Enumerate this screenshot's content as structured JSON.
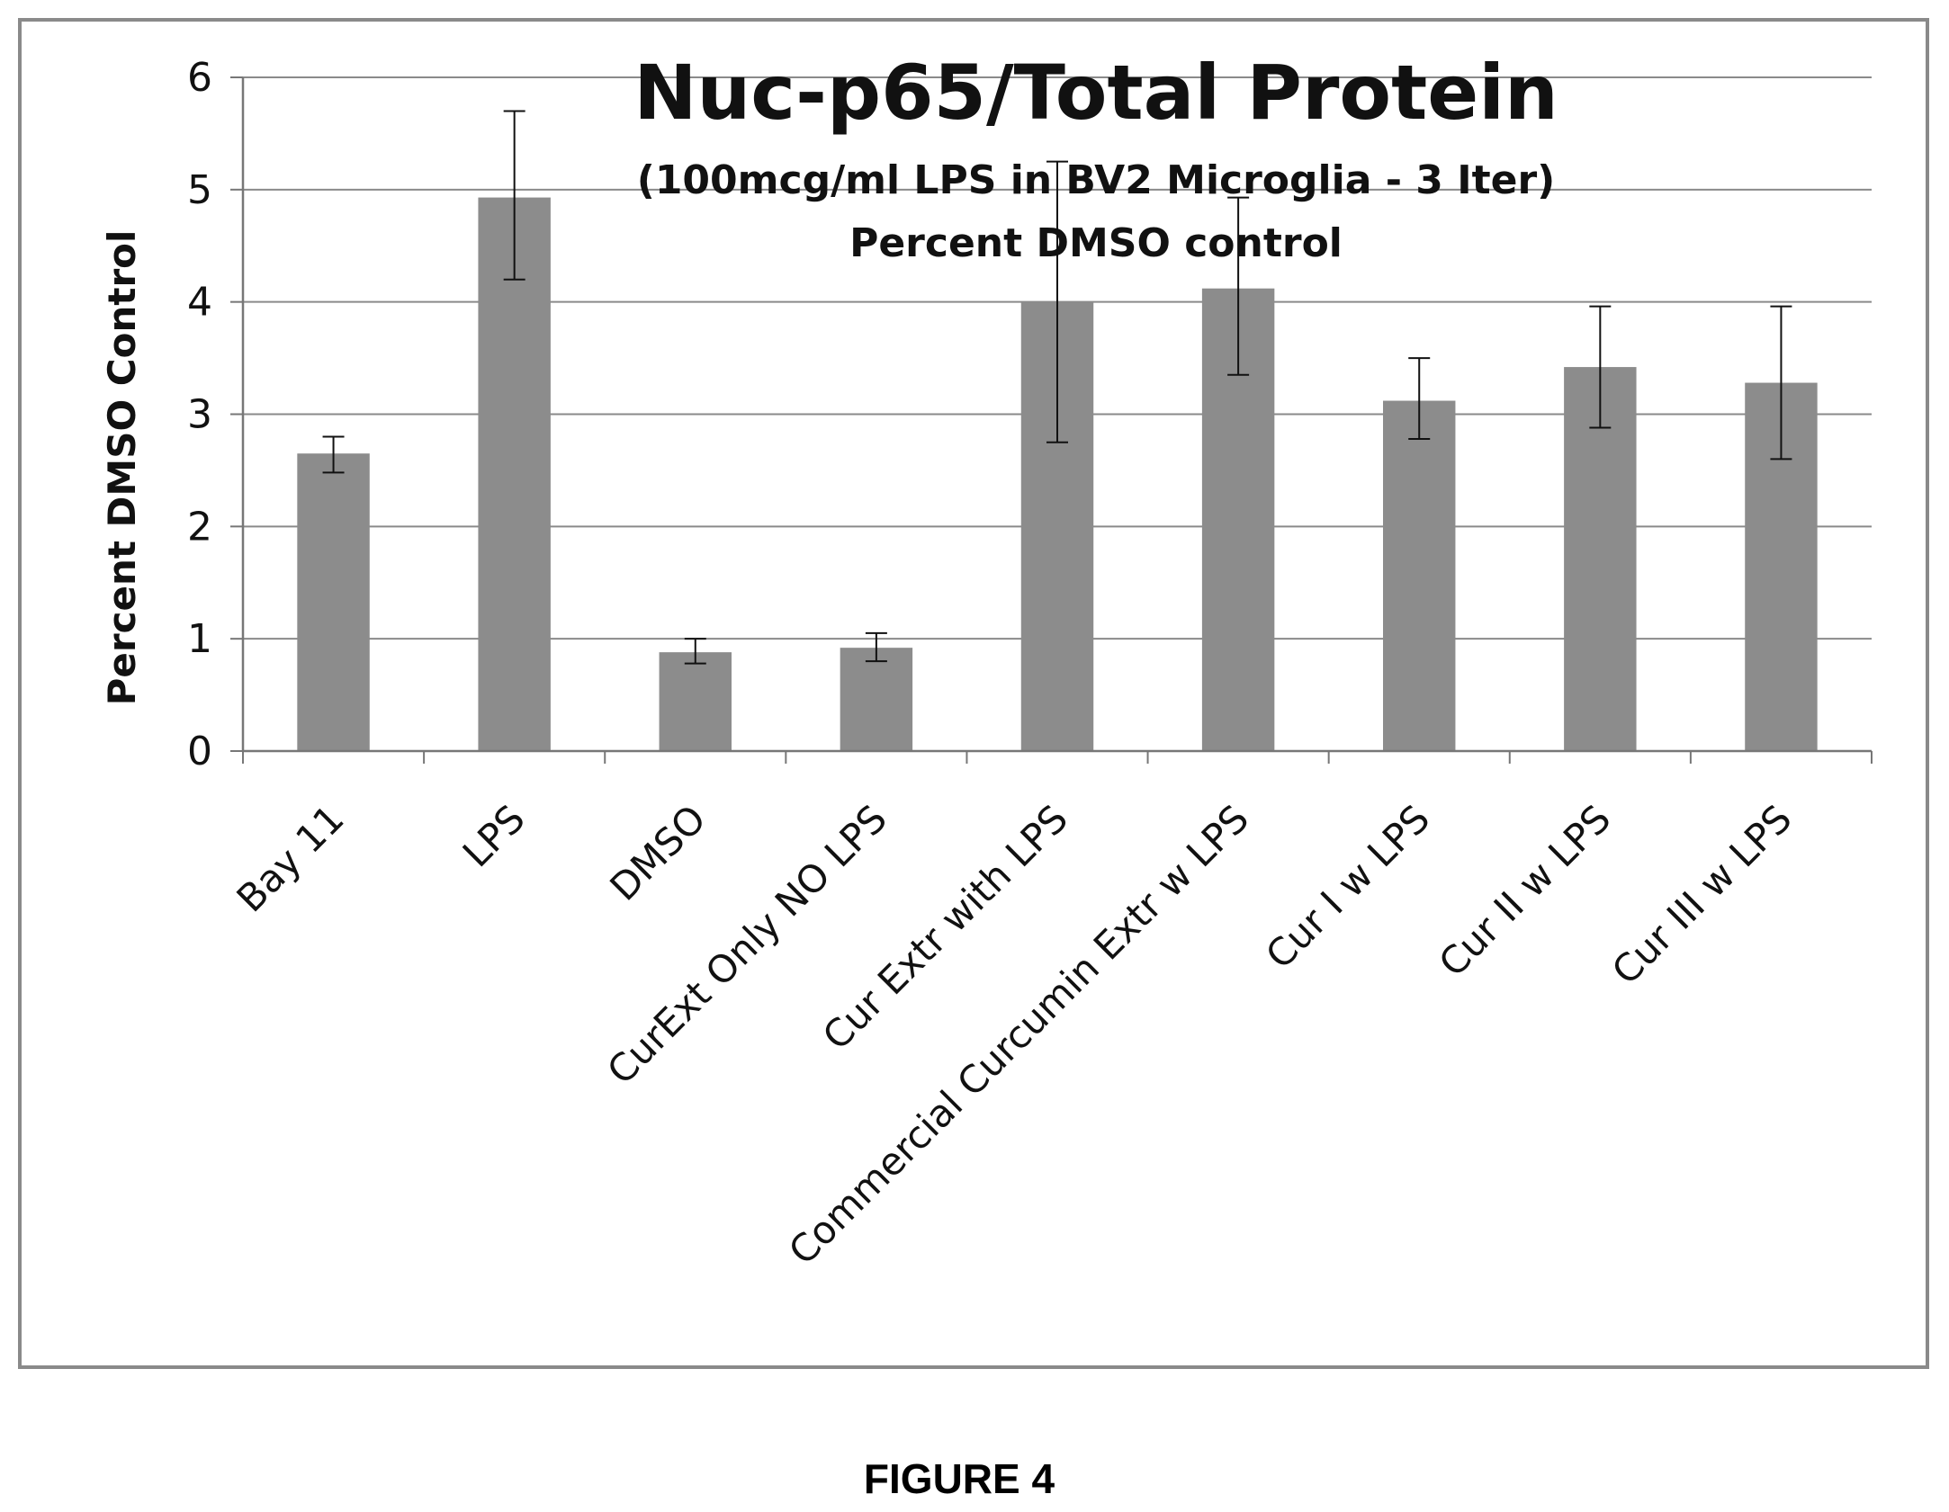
{
  "figure": {
    "caption": "FIGURE 4"
  },
  "chart_data": {
    "type": "bar",
    "title": "Nuc-p65/Total Protein",
    "subtitle_line1": "(100mcg/ml LPS in BV2 Microglia -  3 Iter)",
    "subtitle_line2": "Percent DMSO control",
    "xlabel": "",
    "ylabel": "Percent DMSO Control",
    "ylim": [
      0,
      6
    ],
    "yticks": [
      "0",
      "1",
      "2",
      "3",
      "4",
      "5",
      "6"
    ],
    "grid": true,
    "legend": "none",
    "bar_color": "#8c8c8c",
    "categories": [
      "Bay 11",
      "LPS",
      "DMSO",
      "CurExt Only NO LPS",
      "Cur Extr with LPS",
      "Commercial Curcumin Extr w LPS",
      "Cur I  w LPS",
      "Cur II w LPS",
      "Cur III w LPS"
    ],
    "values": [
      2.65,
      4.93,
      0.88,
      0.92,
      4.0,
      4.12,
      3.12,
      3.42,
      3.28
    ],
    "error_low": [
      2.48,
      4.2,
      0.78,
      0.8,
      2.75,
      3.35,
      2.78,
      2.88,
      2.6
    ],
    "error_high": [
      2.8,
      5.7,
      1.0,
      1.05,
      5.25,
      4.93,
      3.5,
      3.96,
      3.96
    ]
  }
}
